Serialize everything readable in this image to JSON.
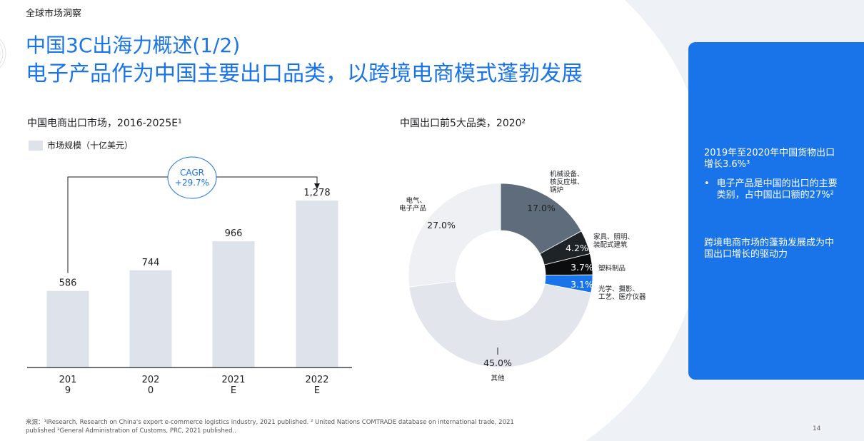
{
  "header": {
    "section_label": "全球市场洞察",
    "title_line1": "中国3C出海力概述(1/2)",
    "title_line2": "电子产品作为中国主要出口品类，以跨境电商模式蓬勃发展"
  },
  "colors": {
    "accent": "#1a74e9",
    "bar": "#dee2ea",
    "donut_dark": "#5f6c7b",
    "donut_darker": "#1e2328",
    "donut_black": "#0b0c0d",
    "donut_light": "#eef0f3",
    "donut_gray": "#e2e5eb"
  },
  "chart_data": [
    {
      "type": "bar",
      "title": "中国电商出口市场，2016-2025E¹",
      "legend": "市场规模（十亿美元）",
      "categories": [
        "201\n9",
        "202\n0",
        "2021\nE",
        "2022\nE"
      ],
      "category_lines": [
        [
          "201",
          "9"
        ],
        [
          "202",
          "0"
        ],
        [
          "2021",
          "E"
        ],
        [
          "2022",
          "E"
        ]
      ],
      "values": [
        586,
        744,
        966,
        1278
      ],
      "value_labels": [
        "586",
        "744",
        "966",
        "1,278"
      ],
      "ylim": [
        0,
        1400
      ],
      "annotation": {
        "line1": "CAGR",
        "line2": "+29.7%"
      }
    },
    {
      "type": "pie",
      "title": "中国出口前5大品类，2020²",
      "slices": [
        {
          "name": "机械设备、核反应堆、锅炉",
          "name_lines": [
            "机械设备、",
            "核反应堆、",
            "锅炉"
          ],
          "value": 17.0,
          "label": "17.0%",
          "color": "#5f6c7b"
        },
        {
          "name": "家具、照明、装配式建筑",
          "name_lines": [
            "家具、照明、",
            "装配式建筑"
          ],
          "value": 4.2,
          "label": "4.2%",
          "color": "#1e2328"
        },
        {
          "name": "塑料制品",
          "name_lines": [
            "塑料制品"
          ],
          "value": 3.7,
          "label": "3.7%",
          "color": "#0b0c0d"
        },
        {
          "name": "光学、摄影、工艺、医疗仪器",
          "name_lines": [
            "光学、摄影、",
            "工艺、医疗仪器"
          ],
          "value": 3.1,
          "label": "3.1%",
          "color": "#1a74e9"
        },
        {
          "name": "其他",
          "name_lines": [
            "其他"
          ],
          "value": 45.0,
          "label": "45.0%",
          "color": "#e2e5eb"
        },
        {
          "name": "电气、电子产品",
          "name_lines": [
            "电气、",
            "电子产品"
          ],
          "value": 27.0,
          "label": "27.0%",
          "color": "#eef0f3"
        }
      ]
    }
  ],
  "sidebar": {
    "paragraph1": "2019年至2020年中国货物出口增长3.6%³",
    "bullet_marker": "•",
    "bullet1": "电子产品是中国的出口的主要类别，占中国出口额的27%²",
    "paragraph2": "跨境电商市场的蓬勃发展成为中国出口增长的驱动力"
  },
  "footer": {
    "source": "来源：¹iResearch, Research on China's export e-commerce logistics industry, 2021 published. ² United Nations COMTRADE database on international trade, 2021 published ³General Administration of Customs, PRC, 2021 published..",
    "page_number": "14"
  }
}
